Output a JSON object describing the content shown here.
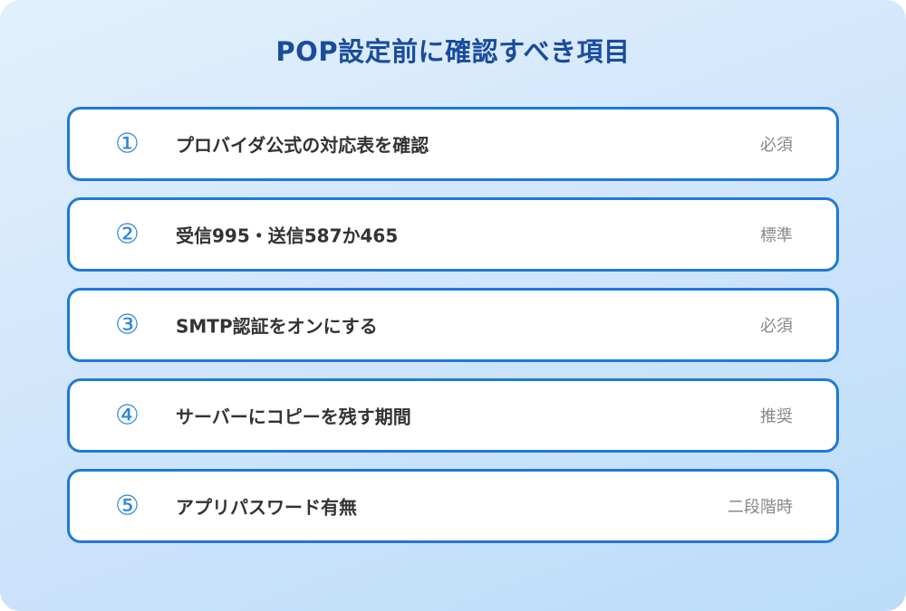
{
  "title": "POP設定前に確認すべき項目",
  "items": [
    {
      "number": "①",
      "label": "プロバイダ公式の対応表を確認",
      "tag": "必須"
    },
    {
      "number": "②",
      "label": "受信995・送信587か465",
      "tag": "標準"
    },
    {
      "number": "③",
      "label": "SMTP認証をオンにする",
      "tag": "必須"
    },
    {
      "number": "④",
      "label": "サーバーにコピーを残す期間",
      "tag": "推奨"
    },
    {
      "number": "⑤",
      "label": "アプリパスワード有無",
      "tag": "二段階時"
    }
  ]
}
